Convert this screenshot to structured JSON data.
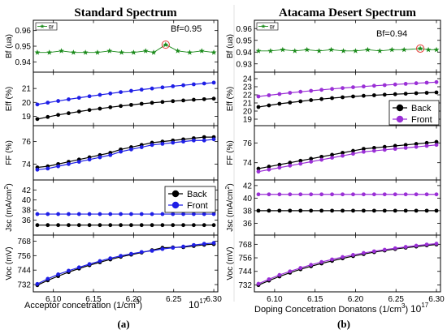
{
  "chart_data": [
    {
      "type": "line",
      "panel_label": "(a)",
      "title": "Standard Spectrum",
      "xlabel": "Acceptor concetration  (1/cm",
      "xlabel_sup": "3",
      "xlabel_close": ")",
      "x_multiplier_base": "10",
      "x_multiplier_exp": "17",
      "xlim": [
        6.075,
        6.305
      ],
      "xticks": [
        6.1,
        6.15,
        6.2,
        6.25,
        6.3
      ],
      "xtick_labels": [
        "6.10",
        "6.15",
        "6.20",
        "6.25",
        "6.30"
      ],
      "x": [
        6.08,
        6.093,
        6.106,
        6.119,
        6.132,
        6.145,
        6.158,
        6.171,
        6.184,
        6.197,
        6.21,
        6.223,
        6.236,
        6.249,
        6.262,
        6.275,
        6.288,
        6.3
      ],
      "legend": {
        "entries": [
          "Back",
          "Front"
        ],
        "panel": "Jsc",
        "placement": "top-right"
      },
      "subplots": [
        {
          "id": "bf",
          "ylabel": "Bf (ua)",
          "ylim": [
            0.935,
            0.965
          ],
          "yticks": [
            0.94,
            0.95,
            0.96
          ],
          "ytick_labels": [
            "0.94",
            "0.95",
            "0.96"
          ],
          "mini_legend": "Bf",
          "annotation": "Bf=0.95",
          "highlight_x": 6.24,
          "series": [
            {
              "name": "Bf",
              "marker": "star",
              "color": "#1a8a1a",
              "x": [
                6.08,
                6.095,
                6.11,
                6.125,
                6.14,
                6.155,
                6.17,
                6.185,
                6.2,
                6.215,
                6.225,
                6.24,
                6.255,
                6.27,
                6.285,
                6.3
              ],
              "values": [
                0.946,
                0.946,
                0.947,
                0.946,
                0.946,
                0.946,
                0.947,
                0.946,
                0.946,
                0.947,
                0.946,
                0.951,
                0.947,
                0.946,
                0.947,
                0.946
              ]
            }
          ]
        },
        {
          "id": "eff",
          "ylabel": "Eff (%)",
          "ylim": [
            18.5,
            22.0
          ],
          "yticks": [
            19,
            20,
            21
          ],
          "ytick_labels": [
            "19",
            "20",
            "21"
          ],
          "series": [
            {
              "name": "Back",
              "color": "#000000",
              "values": [
                18.8,
                18.95,
                19.1,
                19.22,
                19.34,
                19.45,
                19.55,
                19.65,
                19.74,
                19.82,
                19.9,
                19.97,
                20.03,
                20.09,
                20.14,
                20.19,
                20.23,
                20.27
              ]
            },
            {
              "name": "Front",
              "color": "#1f1fe6",
              "values": [
                19.85,
                19.98,
                20.1,
                20.22,
                20.33,
                20.44,
                20.54,
                20.64,
                20.74,
                20.83,
                20.92,
                21.0,
                21.08,
                21.16,
                21.23,
                21.3,
                21.36,
                21.42
              ]
            }
          ]
        },
        {
          "id": "ff",
          "ylabel": "FF (%)",
          "ylim": [
            72.8,
            77.2
          ],
          "yticks": [
            74,
            76
          ],
          "ytick_labels": [
            "74",
            "76"
          ],
          "series": [
            {
              "name": "Back",
              "color": "#000000",
              "values": [
                73.7,
                73.8,
                74.0,
                74.2,
                74.4,
                74.6,
                74.8,
                75.0,
                75.3,
                75.5,
                75.7,
                75.9,
                76.0,
                76.1,
                76.2,
                76.3,
                76.4,
                76.4
              ]
            },
            {
              "name": "Front",
              "color": "#1f1fe6",
              "values": [
                73.5,
                73.6,
                73.8,
                74.0,
                74.2,
                74.4,
                74.6,
                74.8,
                75.1,
                75.3,
                75.5,
                75.7,
                75.8,
                75.9,
                76.0,
                76.1,
                76.1,
                76.2
              ]
            }
          ]
        },
        {
          "id": "jsc",
          "ylabel": "Jsc (mA/cm",
          "ylabel_sup": "2",
          "ylabel_close": ")",
          "ylim": [
            33.5,
            43.5
          ],
          "yticks": [
            36,
            38,
            40,
            42
          ],
          "ytick_labels": [
            "36",
            "38",
            "40",
            "42"
          ],
          "series": [
            {
              "name": "Back",
              "color": "#000000",
              "values": [
                35.0,
                35.0,
                35.0,
                35.0,
                35.0,
                35.0,
                35.0,
                35.0,
                35.0,
                35.0,
                35.0,
                35.0,
                35.0,
                35.0,
                35.0,
                35.0,
                35.0,
                35.0
              ]
            },
            {
              "name": "Front",
              "color": "#1f1fe6",
              "values": [
                37.2,
                37.2,
                37.2,
                37.2,
                37.2,
                37.2,
                37.2,
                37.2,
                37.2,
                37.2,
                37.2,
                37.2,
                37.2,
                37.2,
                37.2,
                37.2,
                37.2,
                37.2
              ]
            }
          ]
        },
        {
          "id": "voc",
          "ylabel": "Voc (mV)",
          "ylim": [
            728,
            771
          ],
          "yticks": [
            732,
            744,
            756,
            768
          ],
          "ytick_labels": [
            "732",
            "744",
            "756",
            "768"
          ],
          "series": [
            {
              "name": "Back",
              "color": "#000000",
              "values": [
                731.5,
                735.5,
                739,
                742.3,
                745.3,
                748,
                750.5,
                752.8,
                755,
                756.8,
                758.5,
                760.5,
                762.5,
                762.8,
                763,
                764,
                765,
                765.5
              ]
            },
            {
              "name": "Front",
              "color": "#1f1fe6",
              "values": [
                732.5,
                736.8,
                740.5,
                743.5,
                746.3,
                749,
                751.5,
                753.8,
                755.8,
                757.5,
                759,
                760,
                761.5,
                762.5,
                763.5,
                764.8,
                765.8,
                766.5
              ]
            }
          ]
        }
      ]
    },
    {
      "type": "line",
      "panel_label": "(b)",
      "title": "Atacama Desert Spectrum",
      "xlabel": "Doping Concetration Donatons  (1/cm",
      "xlabel_sup": "3",
      "xlabel_close": ")",
      "x_multiplier_base": "10",
      "x_multiplier_exp": "17",
      "xlim": [
        6.075,
        6.305
      ],
      "xticks": [
        6.1,
        6.15,
        6.2,
        6.25,
        6.3
      ],
      "xtick_labels": [
        "6.10",
        "6.15",
        "6.20",
        "6.25",
        "6.30"
      ],
      "x": [
        6.08,
        6.093,
        6.106,
        6.119,
        6.132,
        6.145,
        6.158,
        6.171,
        6.184,
        6.197,
        6.21,
        6.223,
        6.236,
        6.249,
        6.262,
        6.275,
        6.288,
        6.3
      ],
      "legend": {
        "entries": [
          "Back",
          "Front"
        ],
        "panel": "Eff",
        "placement": "bottom-right"
      },
      "subplots": [
        {
          "id": "bf",
          "ylabel": "Bf (ua)",
          "ylim": [
            0.925,
            0.965
          ],
          "yticks": [
            0.93,
            0.94,
            0.95,
            0.96
          ],
          "ytick_labels": [
            "0.93",
            "0.94",
            "0.95",
            "0.96"
          ],
          "mini_legend": "Bf",
          "annotation": "Bf=0.94",
          "highlight_x": 6.28,
          "series": [
            {
              "name": "Bf",
              "marker": "star",
              "color": "#1a8a1a",
              "x": [
                6.08,
                6.095,
                6.11,
                6.125,
                6.14,
                6.155,
                6.17,
                6.185,
                6.2,
                6.215,
                6.23,
                6.245,
                6.26,
                6.28,
                6.29,
                6.3
              ],
              "values": [
                0.941,
                0.941,
                0.942,
                0.941,
                0.942,
                0.941,
                0.942,
                0.941,
                0.941,
                0.942,
                0.941,
                0.942,
                0.942,
                0.943,
                0.942,
                0.942
              ]
            }
          ]
        },
        {
          "id": "eff",
          "ylabel": "Eff (%)",
          "ylim": [
            18.5,
            24.5
          ],
          "yticks": [
            19,
            20,
            21,
            22,
            23,
            24
          ],
          "ytick_labels": [
            "19",
            "20",
            "21",
            "22",
            "23",
            "24"
          ],
          "series": [
            {
              "name": "Back",
              "color": "#000000",
              "values": [
                20.5,
                20.7,
                20.9,
                21.05,
                21.2,
                21.35,
                21.48,
                21.6,
                21.7,
                21.8,
                21.88,
                21.95,
                22.02,
                22.08,
                22.14,
                22.2,
                22.25,
                22.3
              ]
            },
            {
              "name": "Front",
              "color": "#9a2fd6",
              "values": [
                21.8,
                21.95,
                22.1,
                22.25,
                22.38,
                22.5,
                22.62,
                22.73,
                22.84,
                22.94,
                23.03,
                23.12,
                23.2,
                23.28,
                23.36,
                23.43,
                23.5,
                23.57
              ]
            }
          ]
        },
        {
          "id": "ff",
          "ylabel": "FF (%)",
          "ylim": [
            72.5,
            77.5
          ],
          "yticks": [
            74,
            76
          ],
          "ytick_labels": [
            "74",
            "76"
          ],
          "series": [
            {
              "name": "Back",
              "color": "#000000",
              "values": [
                73.4,
                73.6,
                73.8,
                74.0,
                74.2,
                74.4,
                74.6,
                74.8,
                75.0,
                75.2,
                75.4,
                75.5,
                75.6,
                75.7,
                75.8,
                75.9,
                76.0,
                76.1
              ]
            },
            {
              "name": "Front",
              "color": "#9a2fd6",
              "values": [
                73.1,
                73.3,
                73.5,
                73.7,
                73.9,
                74.1,
                74.3,
                74.5,
                74.7,
                74.9,
                75.1,
                75.2,
                75.3,
                75.4,
                75.5,
                75.6,
                75.7,
                75.8
              ]
            }
          ]
        },
        {
          "id": "jsc",
          "ylabel": "Jsc (mA/cm",
          "ylabel_sup": "2",
          "ylabel_close": ")",
          "ylim": [
            34.5,
            42.5
          ],
          "yticks": [
            36,
            38,
            40,
            42
          ],
          "ytick_labels": [
            "36",
            "38",
            "40",
            "42"
          ],
          "series": [
            {
              "name": "Back",
              "color": "#000000",
              "values": [
                38.0,
                38.0,
                38.0,
                38.0,
                38.0,
                38.0,
                38.0,
                38.0,
                38.0,
                38.0,
                38.0,
                38.0,
                38.0,
                38.0,
                38.0,
                38.0,
                38.0,
                38.0
              ]
            },
            {
              "name": "Front",
              "color": "#9a2fd6",
              "values": [
                40.6,
                40.6,
                40.6,
                40.6,
                40.6,
                40.6,
                40.6,
                40.6,
                40.6,
                40.6,
                40.6,
                40.6,
                40.6,
                40.6,
                40.6,
                40.6,
                40.6,
                40.6
              ]
            }
          ]
        },
        {
          "id": "voc",
          "ylabel": "Voc (mV)",
          "ylim": [
            728,
            774
          ],
          "yticks": [
            732,
            744,
            756,
            768
          ],
          "ytick_labels": [
            "732",
            "744",
            "756",
            "768"
          ],
          "series": [
            {
              "name": "Back",
              "color": "#000000",
              "values": [
                731.8,
                735.8,
                739.5,
                742.8,
                745.8,
                748.5,
                751,
                753.3,
                755.5,
                757.5,
                759.3,
                761,
                762.5,
                763.8,
                765,
                766,
                767,
                767.8
              ]
            },
            {
              "name": "Front",
              "color": "#9a2fd6",
              "values": [
                733,
                737,
                740.8,
                744,
                747,
                749.8,
                752.3,
                754.6,
                756.7,
                758.6,
                760.3,
                761.8,
                763.2,
                764.5,
                765.7,
                766.8,
                767.8,
                768.6
              ]
            }
          ]
        }
      ]
    }
  ]
}
